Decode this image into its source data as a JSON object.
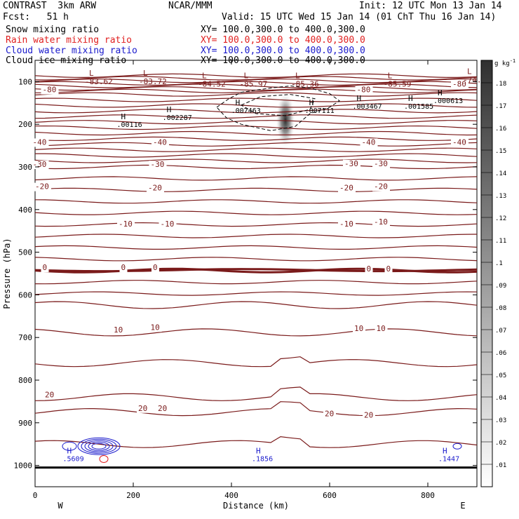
{
  "header": {
    "model": "CONTRAST  3km ARW",
    "center": "NCAR/MMM",
    "init": "Init: 12 UTC Mon 13 Jan 14",
    "fcst": "Fcst:   51 h",
    "valid": "Valid: 15 UTC Wed 15 Jan 14 (01 ChT Thu 16 Jan 14)",
    "fields": [
      {
        "name": "Snow mixing ratio",
        "xy": "XY= 100.0,300.0 to 400.0,300.0",
        "color": "#000000"
      },
      {
        "name": "Rain water mixing ratio",
        "xy": "XY= 100.0,300.0 to 400.0,300.0",
        "color": "#e02020"
      },
      {
        "name": "Cloud water mixing ratio",
        "xy": "XY= 100.0,300.0 to 400.0,300.0",
        "color": "#1a1acc"
      },
      {
        "name": "Cloud ice mixing ratio",
        "xy": "XY= 100.0,300.0 to 400.0,300.0",
        "color": "#000000"
      }
    ]
  },
  "colors": {
    "temperature": "#7a1a1a",
    "cloud_water": "#1a1acc",
    "rain": "#e02020",
    "ice": "#000000"
  },
  "chart_data": {
    "type": "cross-section",
    "xlabel": "Distance (km)",
    "ylabel": "Pressure (hPa)",
    "xlim": [
      0,
      900
    ],
    "ylim": [
      1050,
      50
    ],
    "x_ticks": [
      0,
      200,
      400,
      600,
      800
    ],
    "y_ticks": [
      100,
      200,
      300,
      400,
      500,
      600,
      700,
      800,
      900,
      1000
    ],
    "west_label": "W",
    "east_label": "E",
    "colorbar": {
      "unit": "g kg",
      "unit_exp": "-1",
      "min": 0,
      "max": 0.19,
      "ticks": [
        ".01",
        ".02",
        ".03",
        ".04",
        ".05",
        ".06",
        ".07",
        ".08",
        ".09",
        ".1",
        ".11",
        ".12",
        ".13",
        ".14",
        ".15",
        ".16",
        ".17",
        ".18"
      ]
    },
    "snow_max": {
      "x": 510,
      "p": 190,
      "value": 0.19
    },
    "temperature_labels": [
      {
        "x": 15,
        "p": 125,
        "text": "-80"
      },
      {
        "x": 655,
        "p": 125,
        "text": "-80"
      },
      {
        "x": 850,
        "p": 112,
        "text": "-80"
      },
      {
        "x": -5,
        "p": 248,
        "text": "-40"
      },
      {
        "x": 240,
        "p": 248,
        "text": "-40"
      },
      {
        "x": 665,
        "p": 248,
        "text": "-40"
      },
      {
        "x": 850,
        "p": 248,
        "text": "-40"
      },
      {
        "x": -5,
        "p": 300,
        "text": "-30"
      },
      {
        "x": 235,
        "p": 300,
        "text": "-30"
      },
      {
        "x": 630,
        "p": 298,
        "text": "-30"
      },
      {
        "x": 690,
        "p": 298,
        "text": "-30"
      },
      {
        "x": 0,
        "p": 352,
        "text": "-20"
      },
      {
        "x": 230,
        "p": 355,
        "text": "-20"
      },
      {
        "x": 620,
        "p": 355,
        "text": "-20"
      },
      {
        "x": 690,
        "p": 352,
        "text": "-20"
      },
      {
        "x": 170,
        "p": 440,
        "text": "-10"
      },
      {
        "x": 255,
        "p": 440,
        "text": "-10"
      },
      {
        "x": 620,
        "p": 440,
        "text": "-10"
      },
      {
        "x": 690,
        "p": 435,
        "text": "-10"
      },
      {
        "x": 15,
        "p": 542,
        "text": "0"
      },
      {
        "x": 175,
        "p": 542,
        "text": "0"
      },
      {
        "x": 240,
        "p": 542,
        "text": "0"
      },
      {
        "x": 675,
        "p": 545,
        "text": "0"
      },
      {
        "x": 715,
        "p": 545,
        "text": "0"
      },
      {
        "x": 160,
        "p": 688,
        "text": "10"
      },
      {
        "x": 235,
        "p": 682,
        "text": "10"
      },
      {
        "x": 650,
        "p": 685,
        "text": "10"
      },
      {
        "x": 695,
        "p": 685,
        "text": "10"
      },
      {
        "x": 20,
        "p": 840,
        "text": "20"
      },
      {
        "x": 210,
        "p": 872,
        "text": "20"
      },
      {
        "x": 250,
        "p": 872,
        "text": "20"
      },
      {
        "x": 590,
        "p": 885,
        "text": "20"
      },
      {
        "x": 670,
        "p": 888,
        "text": "20"
      }
    ],
    "lows": [
      {
        "x": 110,
        "p": 86,
        "value": "-83.62"
      },
      {
        "x": 220,
        "p": 86,
        "value": "-83.72"
      },
      {
        "x": 340,
        "p": 92,
        "value": "-84.52"
      },
      {
        "x": 425,
        "p": 92,
        "value": "-85.97"
      },
      {
        "x": 530,
        "p": 92,
        "value": "-85.36"
      },
      {
        "x": 718,
        "p": 92,
        "value": "-85.59"
      },
      {
        "x": 880,
        "p": 82,
        "value": "-74.86"
      }
    ],
    "highs": [
      {
        "x": 175,
        "p": 188,
        "value": ".00116"
      },
      {
        "x": 268,
        "p": 172,
        "value": ".002287"
      },
      {
        "x": 408,
        "p": 155,
        "value": ".007463"
      },
      {
        "x": 558,
        "p": 155,
        "value": ".007111"
      },
      {
        "x": 655,
        "p": 145,
        "value": ".003467"
      },
      {
        "x": 760,
        "p": 145,
        "value": ".001585"
      },
      {
        "x": 820,
        "p": 132,
        "value": ".000613"
      },
      {
        "x": 65,
        "p": 972,
        "value": ".5609"
      },
      {
        "x": 450,
        "p": 972,
        "value": ".1856"
      },
      {
        "x": 830,
        "p": 972,
        "value": ".1447"
      }
    ]
  }
}
